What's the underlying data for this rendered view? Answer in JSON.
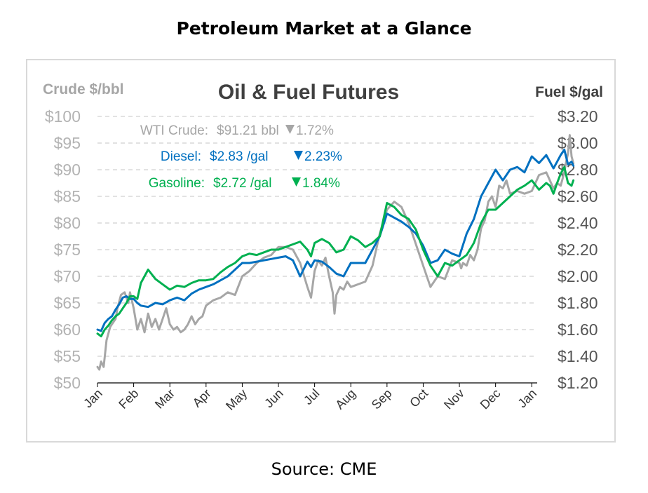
{
  "page": {
    "title": "Petroleum Market at a Glance",
    "source": "Source: CME"
  },
  "chart_data": {
    "type": "line",
    "title": "Oil & Fuel Futures",
    "ylabel_left": "Crude $/bbl",
    "ylabel_right": "Fuel $/gal",
    "xlabel": "",
    "ylim_left": [
      50,
      100
    ],
    "ylim_right": [
      1.2,
      3.2
    ],
    "yticks_left": [
      "$100",
      "$95",
      "$90",
      "$85",
      "$80",
      "$75",
      "$70",
      "$65",
      "$60",
      "$55",
      "$50"
    ],
    "yticks_right": [
      "$3.20",
      "$3.00",
      "$2.80",
      "$2.60",
      "$2.40",
      "$2.20",
      "$2.00",
      "$1.80",
      "$1.60",
      "$1.40",
      "$1.20"
    ],
    "x_ticks": [
      "Jan",
      "Feb",
      "Mar",
      "Apr",
      "May",
      "Jun",
      "Jul",
      "Aug",
      "Sep",
      "Oct",
      "Nov",
      "Dec",
      "Jan"
    ],
    "grid": "horizontal-dashed",
    "legend": "top-left annotations",
    "colors": {
      "crude": "#a6a6a6",
      "diesel": "#0070c0",
      "gasoline": "#00b050"
    },
    "annotations": [
      {
        "series": "crude",
        "label": "WTI Crude:",
        "value": "$91.21 bbl",
        "change": "1.72%",
        "direction": "down"
      },
      {
        "series": "diesel",
        "label": "Diesel:",
        "value": "$2.83 /gal",
        "change": "2.23%",
        "direction": "down"
      },
      {
        "series": "gasoline",
        "label": "Gasoline:",
        "value": "$2.72 /gal",
        "change": "1.84%",
        "direction": "down"
      }
    ],
    "series": [
      {
        "name": "WTI Crude",
        "axis": "left",
        "color": "#a6a6a6",
        "x": [
          0.0,
          0.05,
          0.1,
          0.17,
          0.25,
          0.35,
          0.45,
          0.5,
          0.55,
          0.65,
          0.75,
          0.8,
          0.85,
          0.9,
          1.0,
          1.1,
          1.2,
          1.3,
          1.4,
          1.5,
          1.6,
          1.7,
          1.8,
          1.9,
          2.0,
          2.1,
          2.2,
          2.3,
          2.4,
          2.5,
          2.6,
          2.7,
          2.8,
          2.9,
          3.0,
          3.2,
          3.4,
          3.6,
          3.8,
          4.0,
          4.2,
          4.4,
          4.6,
          4.8,
          5.0,
          5.2,
          5.4,
          5.6,
          5.8,
          5.9,
          6.0,
          6.1,
          6.2,
          6.3,
          6.4,
          6.5,
          6.55,
          6.6,
          6.7,
          6.8,
          6.9,
          7.0,
          7.2,
          7.4,
          7.6,
          7.8,
          8.0,
          8.2,
          8.4,
          8.6,
          8.8,
          9.0,
          9.2,
          9.4,
          9.6,
          9.8,
          10.0,
          10.05,
          10.1,
          10.2,
          10.3,
          10.4,
          10.5,
          10.6,
          10.7,
          10.8,
          10.9,
          11.0,
          11.1,
          11.2,
          11.3,
          11.4,
          11.6,
          11.8,
          12.0,
          12.2,
          12.4,
          12.5,
          12.6,
          12.7,
          12.8,
          12.9,
          12.95,
          13.0,
          13.05,
          13.1,
          13.15
        ],
        "values": [
          53.0,
          52.5,
          54.0,
          53.0,
          58.0,
          60.5,
          61.5,
          62.0,
          64.0,
          66.5,
          67.0,
          66.0,
          65.0,
          67.0,
          64.0,
          60.0,
          62.0,
          59.5,
          63.0,
          60.5,
          62.0,
          60.0,
          62.0,
          64.0,
          61.0,
          60.0,
          60.5,
          59.5,
          60.0,
          61.0,
          62.5,
          61.0,
          62.0,
          62.5,
          64.5,
          65.5,
          66.0,
          67.0,
          66.5,
          70.0,
          71.0,
          72.5,
          73.5,
          74.0,
          75.5,
          75.5,
          75.0,
          72.5,
          68.0,
          66.0,
          71.0,
          73.0,
          72.0,
          73.5,
          70.0,
          67.0,
          63.0,
          66.5,
          68.0,
          67.5,
          69.0,
          68.0,
          68.5,
          69.0,
          72.0,
          78.0,
          82.5,
          84.0,
          83.0,
          80.0,
          76.0,
          72.0,
          68.0,
          70.0,
          69.5,
          73.0,
          72.5,
          71.5,
          72.5,
          72.0,
          74.0,
          73.0,
          75.0,
          79.0,
          80.5,
          84.0,
          85.0,
          83.0,
          87.0,
          86.5,
          88.0,
          85.5,
          86.0,
          85.5,
          86.0,
          89.0,
          89.5,
          88.0,
          86.5,
          87.5,
          87.0,
          89.5,
          91.5,
          93.0,
          96.5,
          92.5,
          91.2
        ]
      },
      {
        "name": "Diesel",
        "axis": "right",
        "color": "#0070c0",
        "x": [
          0.0,
          0.1,
          0.2,
          0.3,
          0.4,
          0.5,
          0.6,
          0.7,
          0.8,
          0.9,
          1.0,
          1.1,
          1.2,
          1.4,
          1.6,
          1.8,
          2.0,
          2.2,
          2.4,
          2.6,
          2.8,
          3.0,
          3.2,
          3.4,
          3.6,
          3.8,
          4.0,
          4.2,
          4.4,
          4.6,
          4.8,
          5.0,
          5.2,
          5.4,
          5.6,
          5.8,
          5.9,
          6.0,
          6.2,
          6.4,
          6.6,
          6.8,
          7.0,
          7.2,
          7.4,
          7.6,
          7.8,
          8.0,
          8.2,
          8.4,
          8.6,
          8.8,
          9.0,
          9.2,
          9.4,
          9.6,
          9.8,
          10.0,
          10.2,
          10.4,
          10.6,
          10.8,
          11.0,
          11.2,
          11.4,
          11.6,
          11.8,
          12.0,
          12.2,
          12.4,
          12.5,
          12.6,
          12.7,
          12.8,
          12.9,
          13.0,
          13.1,
          13.15
        ],
        "values": [
          1.6,
          1.59,
          1.65,
          1.68,
          1.7,
          1.75,
          1.79,
          1.84,
          1.85,
          1.83,
          1.83,
          1.8,
          1.78,
          1.77,
          1.8,
          1.79,
          1.82,
          1.84,
          1.82,
          1.87,
          1.9,
          1.92,
          1.94,
          1.97,
          2.0,
          2.05,
          2.1,
          2.1,
          2.11,
          2.12,
          2.13,
          2.14,
          2.15,
          2.12,
          2.0,
          2.11,
          2.07,
          2.12,
          2.11,
          2.07,
          2.02,
          2.0,
          2.1,
          2.1,
          2.1,
          2.2,
          2.3,
          2.47,
          2.44,
          2.41,
          2.37,
          2.32,
          2.23,
          2.1,
          2.12,
          2.2,
          2.17,
          2.15,
          2.32,
          2.43,
          2.6,
          2.7,
          2.8,
          2.72,
          2.8,
          2.82,
          2.78,
          2.9,
          2.85,
          2.91,
          2.86,
          2.81,
          2.86,
          2.91,
          2.95,
          2.84,
          2.86,
          2.83
        ]
      },
      {
        "name": "Gasoline",
        "axis": "right",
        "color": "#00b050",
        "x": [
          0.0,
          0.1,
          0.2,
          0.3,
          0.4,
          0.5,
          0.6,
          0.7,
          0.8,
          0.9,
          1.0,
          1.1,
          1.2,
          1.4,
          1.6,
          1.8,
          2.0,
          2.2,
          2.4,
          2.6,
          2.8,
          3.0,
          3.2,
          3.4,
          3.6,
          3.8,
          4.0,
          4.2,
          4.4,
          4.6,
          4.8,
          5.0,
          5.2,
          5.4,
          5.6,
          5.8,
          5.9,
          6.0,
          6.2,
          6.4,
          6.6,
          6.8,
          7.0,
          7.2,
          7.4,
          7.6,
          7.8,
          8.0,
          8.2,
          8.4,
          8.6,
          8.8,
          9.0,
          9.2,
          9.4,
          9.6,
          9.8,
          10.0,
          10.2,
          10.4,
          10.6,
          10.8,
          11.0,
          11.2,
          11.4,
          11.6,
          11.8,
          12.0,
          12.2,
          12.4,
          12.5,
          12.6,
          12.7,
          12.8,
          12.9,
          13.0,
          13.1,
          13.15
        ],
        "values": [
          1.57,
          1.55,
          1.6,
          1.63,
          1.67,
          1.7,
          1.72,
          1.76,
          1.8,
          1.85,
          1.85,
          1.83,
          1.95,
          2.05,
          1.98,
          1.94,
          1.9,
          1.93,
          1.92,
          1.95,
          1.97,
          1.97,
          1.98,
          2.03,
          2.07,
          2.1,
          2.15,
          2.17,
          2.16,
          2.18,
          2.2,
          2.2,
          2.22,
          2.24,
          2.26,
          2.2,
          2.15,
          2.25,
          2.28,
          2.25,
          2.18,
          2.2,
          2.3,
          2.27,
          2.22,
          2.25,
          2.3,
          2.55,
          2.52,
          2.46,
          2.43,
          2.35,
          2.2,
          2.08,
          2.0,
          2.1,
          2.08,
          2.12,
          2.16,
          2.25,
          2.4,
          2.5,
          2.5,
          2.55,
          2.6,
          2.65,
          2.68,
          2.72,
          2.65,
          2.7,
          2.68,
          2.62,
          2.7,
          2.77,
          2.82,
          2.7,
          2.68,
          2.72
        ]
      }
    ]
  }
}
